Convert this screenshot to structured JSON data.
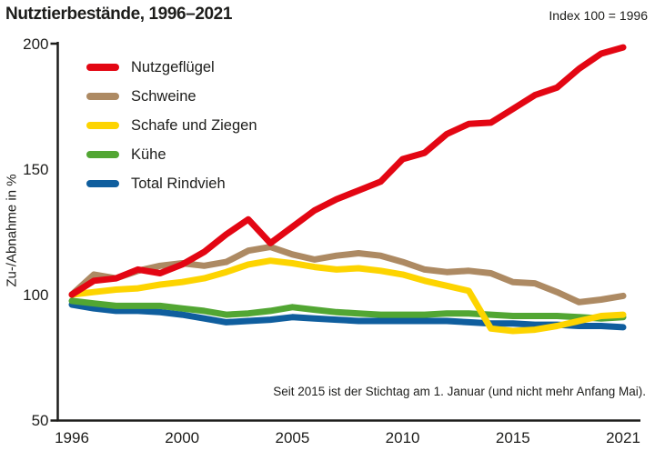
{
  "header": {
    "title": "Nutztierbestände, 1996–2021",
    "index_note": "Index 100 = 1996"
  },
  "annotation": "Seit 2015 ist der Stichtag am 1. Januar (und nicht mehr Anfang Mai).",
  "colors": {
    "axis": "#1d1d1b",
    "tick_text": "#1d1d1b",
    "background": "#ffffff"
  },
  "chart_data": {
    "type": "line",
    "title": "Nutztierbestände, 1996–2021",
    "ylabel": "Zu-/Abnahme in %",
    "xlabel": "",
    "ylim": [
      50,
      200
    ],
    "yticks": [
      200,
      150,
      100,
      50
    ],
    "xticks": [
      "1996",
      "2000",
      "2005",
      "2010",
      "2015",
      "2021"
    ],
    "grid": false,
    "legend_position": "top-left-inside",
    "x": [
      1996,
      1997,
      1998,
      1999,
      2000,
      2001,
      2002,
      2003,
      2004,
      2005,
      2006,
      2007,
      2008,
      2009,
      2010,
      2011,
      2012,
      2013,
      2014,
      2015,
      2016,
      2017,
      2018,
      2019,
      2020,
      2021
    ],
    "series": [
      {
        "key": "nutzgefluegel",
        "name": "Nutzgeflügel",
        "color": "#e30613",
        "values": [
          100,
          105.5,
          106.5,
          110,
          108.5,
          112,
          117,
          124,
          130,
          120.5,
          127,
          133.5,
          138,
          141.5,
          145,
          154,
          156.5,
          164,
          168,
          168.5,
          174,
          179.5,
          182.5,
          190,
          196,
          198.5
        ]
      },
      {
        "key": "schweine",
        "name": "Schweine",
        "color": "#ad8a63",
        "values": [
          100,
          108,
          106.5,
          109.5,
          111.5,
          112.5,
          111.5,
          113,
          117.5,
          119,
          116,
          114,
          115.5,
          116.5,
          115.5,
          113,
          110,
          109,
          109.5,
          108.5,
          105,
          104.5,
          101,
          97,
          98,
          99.5
        ]
      },
      {
        "key": "schafe-und-ziegen",
        "name": "Schafe und Ziegen",
        "color": "#fdd400",
        "values": [
          100,
          101,
          102,
          102.5,
          104,
          105,
          106.5,
          109,
          112,
          113.5,
          112.5,
          111,
          110,
          110.5,
          109.5,
          108,
          105.5,
          103.5,
          101.5,
          86.5,
          85.5,
          86,
          87.5,
          89.5,
          91.5,
          92
        ]
      },
      {
        "key": "kuehe",
        "name": "Kühe",
        "color": "#52a633",
        "values": [
          97.5,
          96.5,
          95.5,
          95.5,
          95.5,
          94.5,
          93.5,
          92,
          92.5,
          93.5,
          95,
          94,
          93,
          92.5,
          92,
          92,
          92,
          92.5,
          92.5,
          92,
          91.5,
          91.5,
          91.5,
          91,
          90.5,
          91
        ]
      },
      {
        "key": "total-rindvieh",
        "name": "Total Rindvieh",
        "color": "#0f5e9e",
        "values": [
          96,
          94.5,
          93.5,
          93.5,
          93,
          92,
          90.5,
          89,
          89.5,
          90,
          91,
          90.5,
          90,
          89.5,
          89.5,
          89.5,
          89.5,
          89.5,
          89,
          88.5,
          88.5,
          88,
          88,
          87.5,
          87.5,
          87
        ]
      }
    ]
  }
}
